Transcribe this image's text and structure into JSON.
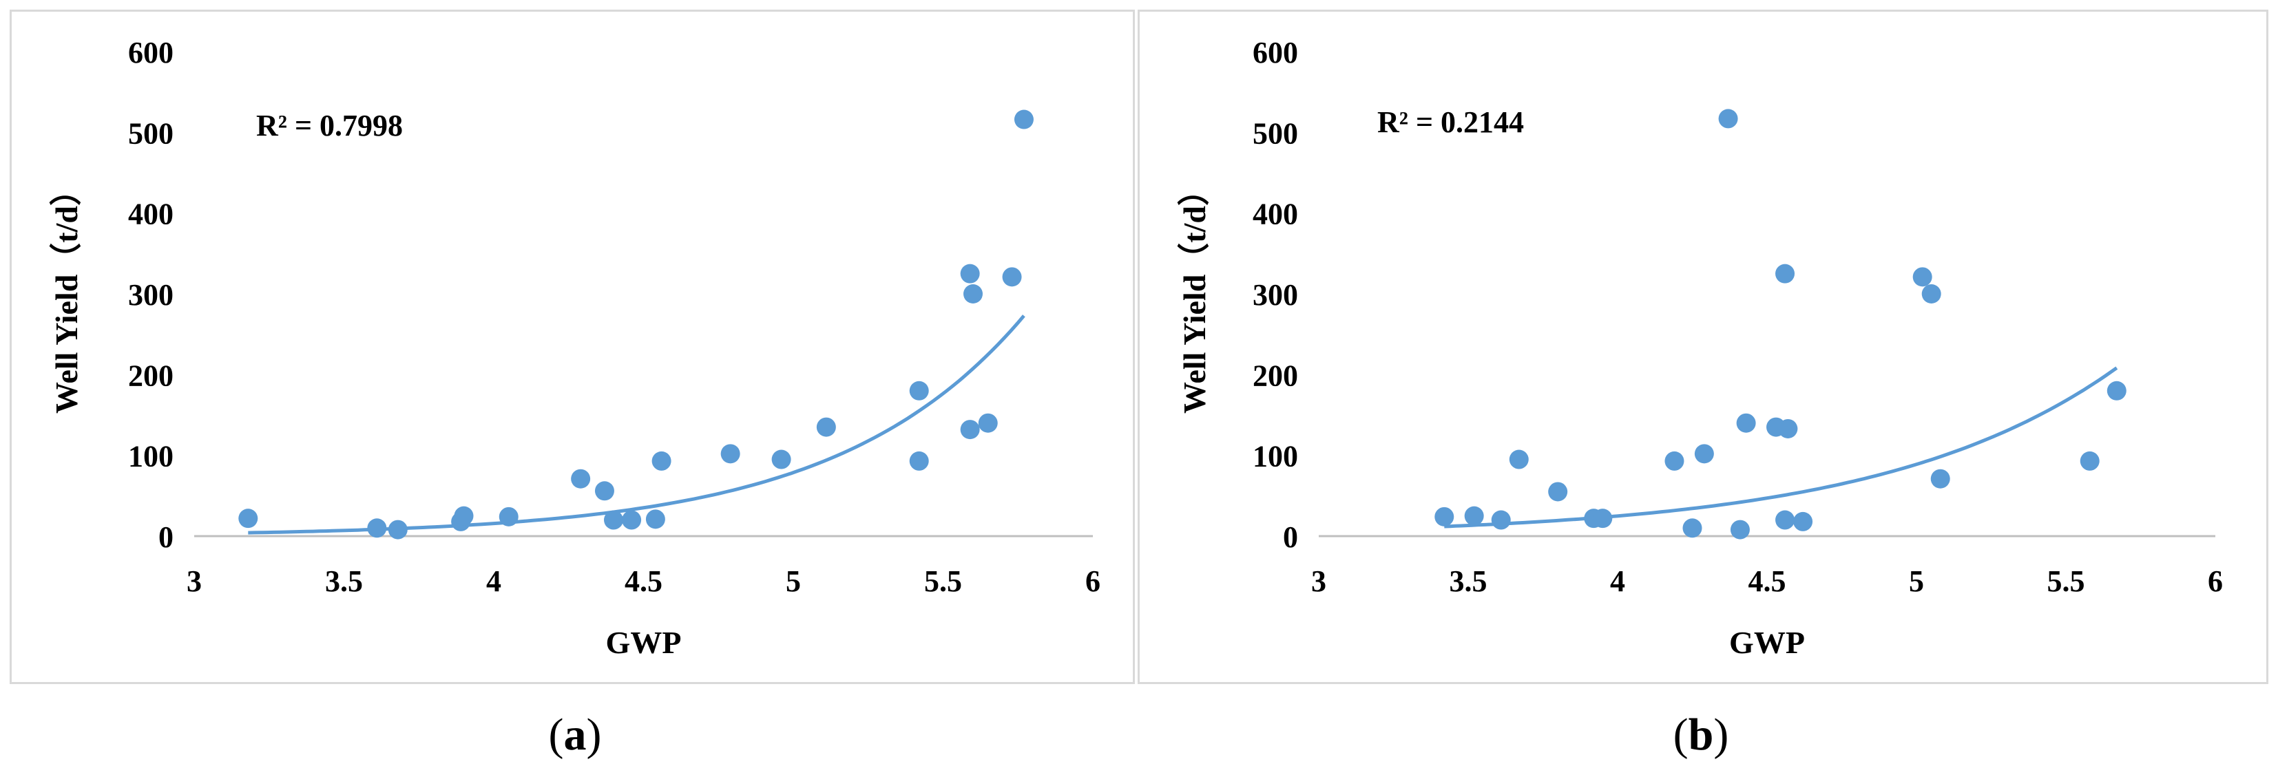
{
  "chart_data": [
    {
      "type": "scatter",
      "panel_label": "a",
      "xlabel": "GWP",
      "ylabel": "Well Yield（t/d）",
      "xlim": [
        3,
        6
      ],
      "ylim": [
        0,
        600
      ],
      "xticks": [
        "3",
        "3.5",
        "4",
        "4.5",
        "5",
        "5.5",
        "6"
      ],
      "yticks": [
        "0",
        "100",
        "200",
        "300",
        "400",
        "500",
        "600"
      ],
      "annotation": "R² = 0.7998",
      "grid": false,
      "marker_color": "#5b9bd5",
      "trend_color": "#5b9bd5",
      "trendline": {
        "type": "exponential",
        "x_range": [
          3.18,
          5.77
        ],
        "a": 0.0245,
        "b": 1.615
      },
      "points": [
        {
          "x": 3.18,
          "y": 22
        },
        {
          "x": 3.61,
          "y": 10
        },
        {
          "x": 3.68,
          "y": 8
        },
        {
          "x": 3.89,
          "y": 18
        },
        {
          "x": 3.9,
          "y": 25
        },
        {
          "x": 4.05,
          "y": 24
        },
        {
          "x": 4.29,
          "y": 71
        },
        {
          "x": 4.37,
          "y": 56
        },
        {
          "x": 4.4,
          "y": 20
        },
        {
          "x": 4.46,
          "y": 20
        },
        {
          "x": 4.54,
          "y": 21
        },
        {
          "x": 4.56,
          "y": 93
        },
        {
          "x": 4.79,
          "y": 102
        },
        {
          "x": 4.96,
          "y": 95
        },
        {
          "x": 5.11,
          "y": 135
        },
        {
          "x": 5.42,
          "y": 93
        },
        {
          "x": 5.42,
          "y": 180
        },
        {
          "x": 5.59,
          "y": 132
        },
        {
          "x": 5.59,
          "y": 325
        },
        {
          "x": 5.6,
          "y": 300
        },
        {
          "x": 5.65,
          "y": 140
        },
        {
          "x": 5.73,
          "y": 321
        },
        {
          "x": 5.77,
          "y": 516
        }
      ]
    },
    {
      "type": "scatter",
      "panel_label": "b",
      "xlabel": "GWP",
      "ylabel": "Well Yield（t/d）",
      "xlim": [
        3,
        6
      ],
      "ylim": [
        0,
        600
      ],
      "xticks": [
        "3",
        "3.5",
        "4",
        "4.5",
        "5",
        "5.5",
        "6"
      ],
      "yticks": [
        "0",
        "100",
        "200",
        "300",
        "400",
        "500",
        "600"
      ],
      "annotation": "R² = 0.2144",
      "grid": false,
      "marker_color": "#5b9bd5",
      "trend_color": "#5b9bd5",
      "trendline": {
        "type": "exponential",
        "x_range": [
          3.42,
          5.67
        ],
        "a": 0.1545,
        "b": 1.271
      },
      "points": [
        {
          "x": 3.42,
          "y": 24
        },
        {
          "x": 3.52,
          "y": 25
        },
        {
          "x": 3.61,
          "y": 20
        },
        {
          "x": 3.67,
          "y": 95
        },
        {
          "x": 3.8,
          "y": 55
        },
        {
          "x": 3.92,
          "y": 22
        },
        {
          "x": 3.95,
          "y": 22
        },
        {
          "x": 4.19,
          "y": 93
        },
        {
          "x": 4.25,
          "y": 10
        },
        {
          "x": 4.29,
          "y": 102
        },
        {
          "x": 4.37,
          "y": 517
        },
        {
          "x": 4.41,
          "y": 8
        },
        {
          "x": 4.43,
          "y": 140
        },
        {
          "x": 4.53,
          "y": 135
        },
        {
          "x": 4.56,
          "y": 20
        },
        {
          "x": 4.56,
          "y": 325
        },
        {
          "x": 4.57,
          "y": 133
        },
        {
          "x": 4.62,
          "y": 18
        },
        {
          "x": 5.02,
          "y": 321
        },
        {
          "x": 5.05,
          "y": 300
        },
        {
          "x": 5.08,
          "y": 71
        },
        {
          "x": 5.58,
          "y": 93
        },
        {
          "x": 5.67,
          "y": 180
        }
      ]
    }
  ]
}
